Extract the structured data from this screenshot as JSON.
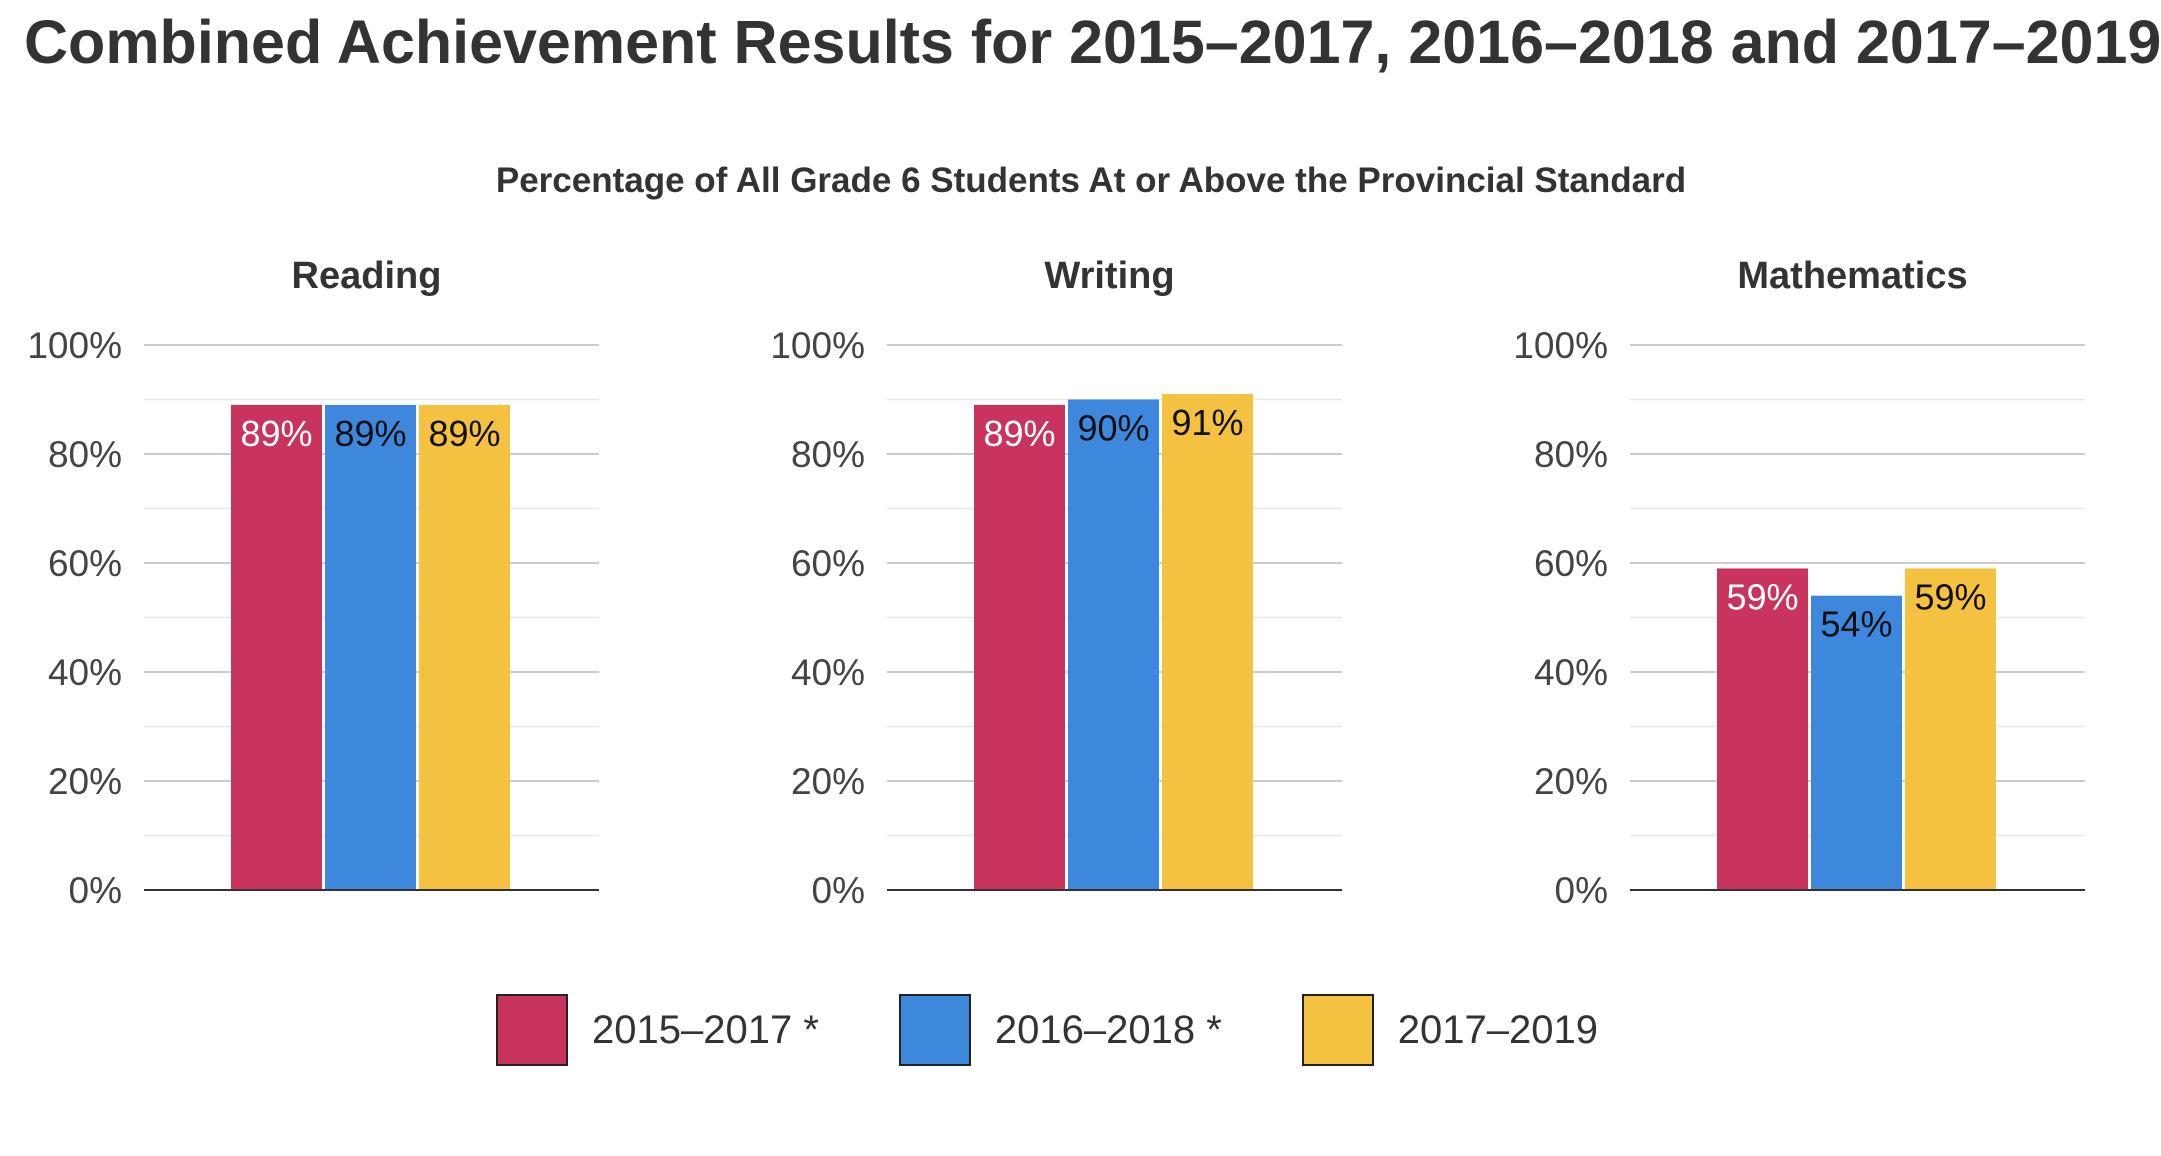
{
  "title": "Combined Achievement Results for 2015–2017, 2016–2018 and 2017–2019",
  "chart_data": {
    "type": "bar",
    "title": "Percentage of All Grade 6 Students At or Above the Provincial Standard",
    "ylim": [
      0,
      100
    ],
    "y_ticks": [
      "0%",
      "20%",
      "40%",
      "60%",
      "80%",
      "100%"
    ],
    "y_tick_values": [
      0,
      20,
      40,
      60,
      80,
      100
    ],
    "grid": true,
    "legend_position": "bottom",
    "series": [
      {
        "name": "2015–2017 *",
        "color": "#c8345d"
      },
      {
        "name": "2016–2018 *",
        "color": "#3d87dd"
      },
      {
        "name": "2017–2019",
        "color": "#f4c141"
      }
    ],
    "panels": [
      {
        "title": "Reading",
        "values": [
          89,
          89,
          89
        ],
        "labels": [
          "89%",
          "89%",
          "89%"
        ],
        "label_colors": [
          "#ffffff",
          "#111111",
          "#111111"
        ]
      },
      {
        "title": "Writing",
        "values": [
          89,
          90,
          91
        ],
        "labels": [
          "89%",
          "90%",
          "91%"
        ],
        "label_colors": [
          "#ffffff",
          "#111111",
          "#111111"
        ]
      },
      {
        "title": "Mathematics",
        "values": [
          59,
          54,
          59
        ],
        "labels": [
          "59%",
          "54%",
          "59%"
        ],
        "label_colors": [
          "#ffffff",
          "#111111",
          "#111111"
        ]
      }
    ]
  }
}
